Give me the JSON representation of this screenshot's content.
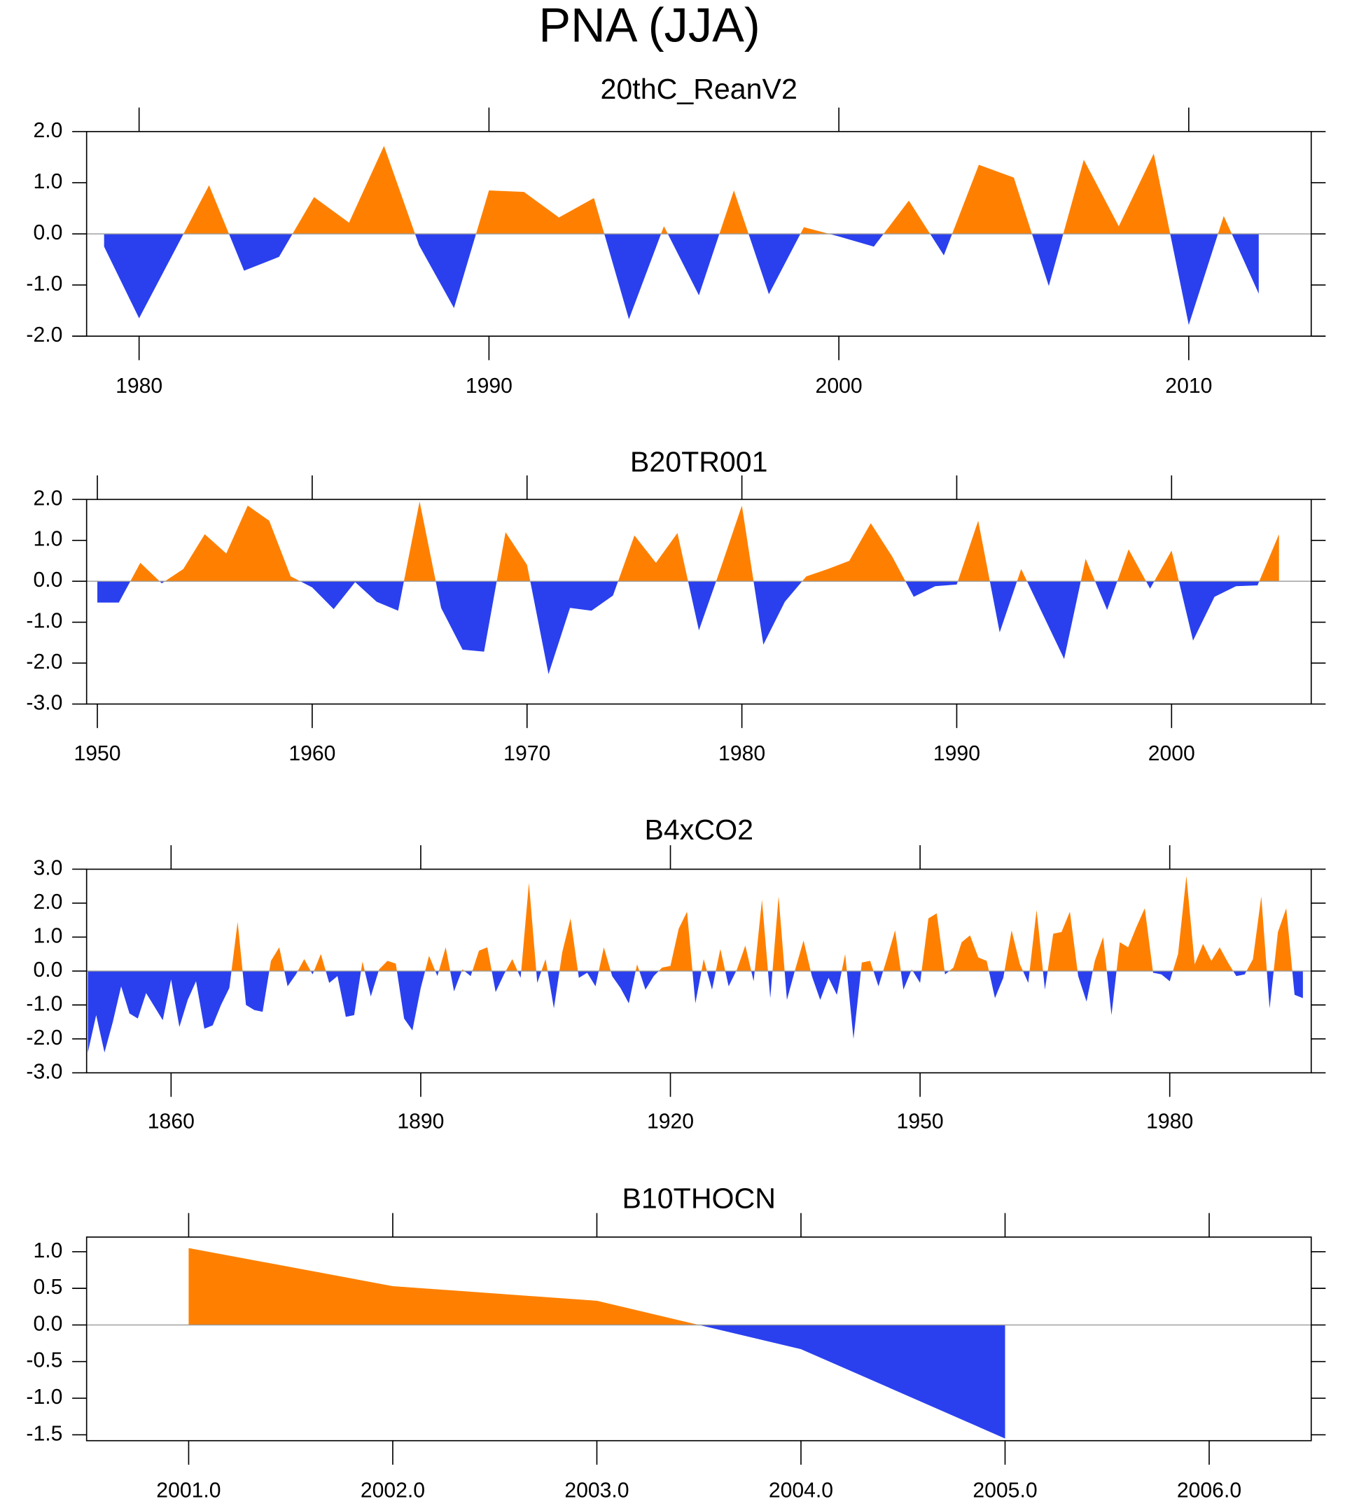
{
  "title": "PNA (JJA)",
  "chart_data": [
    {
      "type": "area",
      "title": "20thC_ReanV2",
      "color_positive": "#ff8000",
      "color_negative": "#2a40ee",
      "x": [
        1979,
        1980,
        1981,
        1982,
        1983,
        1984,
        1985,
        1986,
        1987,
        1988,
        1989,
        1990,
        1991,
        1992,
        1993,
        1994,
        1995,
        1996,
        1997,
        1998,
        1999,
        2000,
        2001,
        2002,
        2003,
        2004,
        2005,
        2006,
        2007,
        2008,
        2009,
        2010,
        2011,
        2012
      ],
      "values": [
        -0.25,
        -1.65,
        -0.35,
        0.95,
        -0.72,
        -0.45,
        0.72,
        0.22,
        1.72,
        -0.22,
        -1.45,
        0.85,
        0.82,
        0.32,
        0.7,
        -1.67,
        0.15,
        -1.2,
        0.85,
        -1.18,
        0.13,
        -0.05,
        -0.25,
        0.65,
        -0.42,
        1.35,
        1.1,
        -1.02,
        1.45,
        0.15,
        1.57,
        -1.78,
        0.35,
        -1.17
      ],
      "xlim": [
        1978.5,
        2013.5
      ],
      "ylim": [
        -2,
        2
      ],
      "xticks": [
        1980,
        1990,
        2000,
        2010
      ],
      "yticks": [
        {
          "value": -2,
          "label": "-2.0"
        },
        {
          "value": -1,
          "label": "-1.0"
        },
        {
          "value": 0,
          "label": "0.0"
        },
        {
          "value": 1,
          "label": "1.0"
        },
        {
          "value": 2,
          "label": "2.0"
        }
      ]
    },
    {
      "type": "area",
      "title": "B20TR001",
      "color_positive": "#ff8000",
      "color_negative": "#2a40ee",
      "x": [
        1950,
        1951,
        1952,
        1953,
        1954,
        1955,
        1956,
        1957,
        1958,
        1959,
        1960,
        1961,
        1962,
        1963,
        1964,
        1965,
        1966,
        1967,
        1968,
        1969,
        1970,
        1971,
        1972,
        1973,
        1974,
        1975,
        1976,
        1977,
        1978,
        1979,
        1980,
        1981,
        1982,
        1983,
        1984,
        1985,
        1986,
        1987,
        1988,
        1989,
        1990,
        1991,
        1992,
        1993,
        1994,
        1995,
        1996,
        1997,
        1998,
        1999,
        2000,
        2001,
        2002,
        2003,
        2004,
        2005
      ],
      "values": [
        -0.52,
        -0.52,
        0.45,
        -0.05,
        0.3,
        1.15,
        0.68,
        1.85,
        1.48,
        0.12,
        -0.15,
        -0.68,
        -0.02,
        -0.5,
        -0.72,
        1.95,
        -0.65,
        -1.67,
        -1.72,
        1.2,
        0.4,
        -2.27,
        -0.65,
        -0.72,
        -0.35,
        1.12,
        0.45,
        1.18,
        -1.2,
        0.3,
        1.85,
        -1.55,
        -0.5,
        0.12,
        0.3,
        0.5,
        1.42,
        0.6,
        -0.38,
        -0.12,
        -0.08,
        1.48,
        -1.25,
        0.3,
        -0.8,
        -1.9,
        0.55,
        -0.7,
        0.78,
        -0.18,
        0.75,
        -1.45,
        -0.38,
        -0.12,
        -0.1,
        1.15
      ],
      "xlim": [
        1949.5,
        2006.5
      ],
      "ylim": [
        -3,
        2
      ],
      "xticks": [
        1950,
        1960,
        1970,
        1980,
        1990,
        2000
      ],
      "yticks": [
        {
          "value": -3,
          "label": "-3.0"
        },
        {
          "value": -2,
          "label": "-2.0"
        },
        {
          "value": -1,
          "label": "-1.0"
        },
        {
          "value": 0,
          "label": "0.0"
        },
        {
          "value": 1,
          "label": "1.0"
        },
        {
          "value": 2,
          "label": "2.0"
        }
      ]
    },
    {
      "type": "area",
      "title": "B4xCO2",
      "color_positive": "#ff8000",
      "color_negative": "#2a40ee",
      "x": [
        1850,
        1851,
        1852,
        1853,
        1854,
        1855,
        1856,
        1857,
        1858,
        1859,
        1860,
        1861,
        1862,
        1863,
        1864,
        1865,
        1866,
        1867,
        1868,
        1869,
        1870,
        1871,
        1872,
        1873,
        1874,
        1875,
        1876,
        1877,
        1878,
        1879,
        1880,
        1881,
        1882,
        1883,
        1884,
        1885,
        1886,
        1887,
        1888,
        1889,
        1890,
        1891,
        1892,
        1893,
        1894,
        1895,
        1896,
        1897,
        1898,
        1899,
        1900,
        1901,
        1902,
        1903,
        1904,
        1905,
        1906,
        1907,
        1908,
        1909,
        1910,
        1911,
        1912,
        1913,
        1914,
        1915,
        1916,
        1917,
        1918,
        1919,
        1920,
        1921,
        1922,
        1923,
        1924,
        1925,
        1926,
        1927,
        1928,
        1929,
        1930,
        1931,
        1932,
        1933,
        1934,
        1935,
        1936,
        1937,
        1938,
        1939,
        1940,
        1941,
        1942,
        1943,
        1944,
        1945,
        1946,
        1947,
        1948,
        1949,
        1950,
        1951,
        1952,
        1953,
        1954,
        1955,
        1956,
        1957,
        1958,
        1959,
        1960,
        1961,
        1962,
        1963,
        1964,
        1965,
        1966,
        1967,
        1968,
        1969,
        1970,
        1971,
        1972,
        1973,
        1974,
        1975,
        1976,
        1977,
        1978,
        1979,
        1980,
        1981,
        1982,
        1983,
        1984,
        1985,
        1986,
        1987,
        1988,
        1989,
        1990,
        1991,
        1992,
        1993,
        1994,
        1995,
        1996
      ],
      "values": [
        -2.4,
        -1.3,
        -2.4,
        -1.5,
        -0.45,
        -1.25,
        -1.4,
        -0.65,
        -1.05,
        -1.45,
        -0.25,
        -1.65,
        -0.85,
        -0.3,
        -1.7,
        -1.6,
        -1.0,
        -0.5,
        1.45,
        -1.0,
        -1.15,
        -1.2,
        0.3,
        0.7,
        -0.45,
        -0.1,
        0.35,
        -0.1,
        0.5,
        -0.35,
        -0.15,
        -1.35,
        -1.3,
        0.28,
        -0.75,
        0.05,
        0.3,
        0.22,
        -1.4,
        -1.75,
        -0.5,
        0.45,
        -0.15,
        0.7,
        -0.6,
        0.05,
        -0.15,
        0.6,
        0.7,
        -0.62,
        -0.1,
        0.35,
        -0.2,
        2.6,
        -0.35,
        0.35,
        -1.1,
        0.55,
        1.55,
        -0.2,
        -0.05,
        -0.45,
        0.7,
        -0.15,
        -0.5,
        -0.95,
        0.2,
        -0.55,
        -0.15,
        0.1,
        0.15,
        1.25,
        1.75,
        -0.95,
        0.35,
        -0.55,
        0.65,
        -0.45,
        0.05,
        0.75,
        -0.3,
        2.1,
        -0.8,
        2.2,
        -0.85,
        0.05,
        0.9,
        -0.15,
        -0.85,
        -0.2,
        -0.7,
        0.5,
        -2.0,
        0.25,
        0.3,
        -0.45,
        0.35,
        1.2,
        -0.55,
        0.05,
        -0.35,
        1.55,
        1.7,
        -0.1,
        0.1,
        0.85,
        1.05,
        0.4,
        0.3,
        -0.8,
        -0.2,
        1.2,
        0.2,
        -0.35,
        1.8,
        -0.55,
        1.1,
        1.15,
        1.75,
        -0.15,
        -0.9,
        0.3,
        1.0,
        -1.3,
        0.85,
        0.7,
        1.3,
        1.85,
        -0.05,
        -0.1,
        -0.3,
        0.5,
        2.8,
        0.2,
        0.8,
        0.3,
        0.7,
        0.25,
        -0.15,
        -0.1,
        0.35,
        2.2,
        -1.1,
        1.15,
        1.85,
        -0.7,
        -0.8
      ],
      "xlim": [
        1849.85,
        1997
      ],
      "ylim": [
        -3,
        3
      ],
      "xticks": [
        1860,
        1890,
        1920,
        1950,
        1980
      ],
      "yticks": [
        {
          "value": -3,
          "label": "-3.0"
        },
        {
          "value": -2,
          "label": "-2.0"
        },
        {
          "value": -1,
          "label": "-1.0"
        },
        {
          "value": 0,
          "label": "0.0"
        },
        {
          "value": 1,
          "label": "1.0"
        },
        {
          "value": 2,
          "label": "2.0"
        },
        {
          "value": 3,
          "label": "3.0"
        }
      ]
    },
    {
      "type": "area",
      "title": "B10THOCN",
      "color_positive": "#ff8000",
      "color_negative": "#2a40ee",
      "x": [
        2001,
        2002,
        2003,
        2004,
        2005
      ],
      "values": [
        1.05,
        0.53,
        0.33,
        -0.33,
        -1.55
      ],
      "xlim": [
        2000.5,
        2006.5
      ],
      "ylim": [
        -1.58,
        1.2
      ],
      "xticks": [
        {
          "value": 2001,
          "label": "2001.0"
        },
        {
          "value": 2002,
          "label": "2002.0"
        },
        {
          "value": 2003,
          "label": "2003.0"
        },
        {
          "value": 2004,
          "label": "2004.0"
        },
        {
          "value": 2005,
          "label": "2005.0"
        },
        {
          "value": 2006,
          "label": "2006.0"
        }
      ],
      "yticks": [
        {
          "value": -1.5,
          "label": "-1.5"
        },
        {
          "value": -1,
          "label": "-1.0"
        },
        {
          "value": -0.5,
          "label": "-0.5"
        },
        {
          "value": 0,
          "label": "0.0"
        },
        {
          "value": 0.5,
          "label": "0.5"
        },
        {
          "value": 1,
          "label": "1.0"
        }
      ]
    }
  ]
}
